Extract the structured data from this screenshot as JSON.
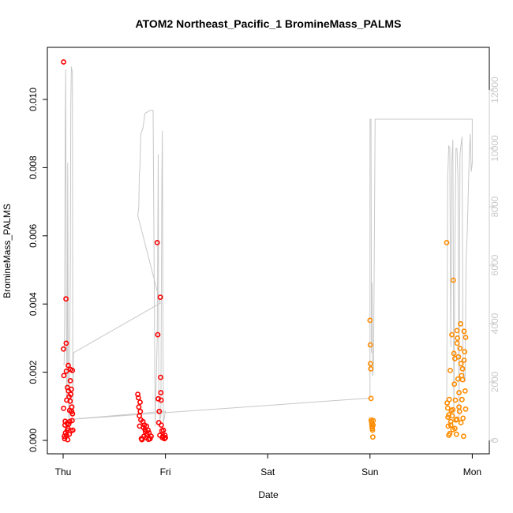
{
  "chart_data": {
    "type": "scatter",
    "title": "ATOM2 Northeast_Pacific_1 BromineMass_PALMS",
    "xlabel": "Date",
    "ylabel": "BromineMass_PALMS",
    "x_ticks": [
      "Thu",
      "Fri",
      "Sat",
      "Sun",
      "Mon"
    ],
    "x_range": [
      0,
      4.07
    ],
    "ylim": [
      0,
      0.0112
    ],
    "y_ticks": [
      0.0,
      0.002,
      0.004,
      0.006,
      0.008,
      0.01
    ],
    "y_tick_labels": [
      "0.000",
      "0.002",
      "0.004",
      "0.006",
      "0.008",
      "0.010"
    ],
    "y2lim": [
      0,
      13100
    ],
    "y2_ticks": [
      0,
      2000,
      4000,
      6000,
      8000,
      10000,
      12000
    ],
    "y2_tick_labels": [
      "0",
      "2000",
      "4000",
      "6000",
      "8000",
      "10000",
      "12000"
    ],
    "grid": false,
    "colors": {
      "series1": "#ff0000",
      "series2": "#ff8c00",
      "altitude": "#c8c8c8",
      "frame": "#000000"
    },
    "series": [
      {
        "color": "#ff0000",
        "points": [
          [
            0.005,
            0.0111
          ],
          [
            0.005,
            0.00094
          ],
          [
            0.007,
            0.0019
          ],
          [
            0.004,
            0.00268
          ],
          [
            0.012,
            0.00012
          ],
          [
            0.015,
            5e-05
          ],
          [
            0.018,
            0.00045
          ],
          [
            0.02,
            0.00056
          ],
          [
            0.022,
            0.00022
          ],
          [
            0.028,
            0.00415
          ],
          [
            0.03,
            0.00285
          ],
          [
            0.032,
            0.00203
          ],
          [
            0.035,
            0.00118
          ],
          [
            0.033,
            0.00015
          ],
          [
            0.038,
            0.0005
          ],
          [
            0.04,
            0.0003
          ],
          [
            0.042,
            0.00155
          ],
          [
            0.045,
            2e-05
          ],
          [
            0.048,
            0.00035
          ],
          [
            0.05,
            0.0022
          ],
          [
            0.052,
            0.00145
          ],
          [
            0.055,
            0.00048
          ],
          [
            0.058,
            0.00128
          ],
          [
            0.06,
            0.00018
          ],
          [
            0.063,
            0.00088
          ],
          [
            0.065,
            0.00055
          ],
          [
            0.068,
            0.00115
          ],
          [
            0.07,
            0.00175
          ],
          [
            0.072,
            0.00208
          ],
          [
            0.075,
            0.00135
          ],
          [
            0.078,
            0.00028
          ],
          [
            0.08,
            0.0015
          ],
          [
            0.083,
            0.00085
          ],
          [
            0.085,
            0.00098
          ],
          [
            0.088,
            0.00058
          ],
          [
            0.09,
            0.00205
          ],
          [
            0.092,
            0.00078
          ],
          [
            0.095,
            0.0003
          ],
          [
            0.73,
            0.00135
          ],
          [
            0.735,
            0.00125
          ],
          [
            0.74,
            0.00098
          ],
          [
            0.745,
            0.00072
          ],
          [
            0.748,
            0.00042
          ],
          [
            0.752,
            0.00112
          ],
          [
            0.755,
            0.00085
          ],
          [
            0.76,
            0.0006
          ],
          [
            0.765,
            5e-05
          ],
          [
            0.77,
            2e-05
          ],
          [
            0.78,
            0.00055
          ],
          [
            0.785,
            0.00038
          ],
          [
            0.79,
            0.00012
          ],
          [
            0.795,
            0.00045
          ],
          [
            0.8,
            0.00032
          ],
          [
            0.805,
            0.00025
          ],
          [
            0.81,
            8e-05
          ],
          [
            0.815,
            0.00042
          ],
          [
            0.82,
            0.00018
          ],
          [
            0.83,
            0.0003
          ],
          [
            0.835,
            3e-05
          ],
          [
            0.84,
            0.00022
          ],
          [
            0.85,
            5e-05
          ],
          [
            0.86,
            0.00012
          ],
          [
            0.92,
            0.0058
          ],
          [
            0.925,
            0.0031
          ],
          [
            0.93,
            0.00122
          ],
          [
            0.935,
            0.00052
          ],
          [
            0.94,
            0.00085
          ],
          [
            0.945,
            0.00015
          ],
          [
            0.95,
            0.0042
          ],
          [
            0.953,
            0.00185
          ],
          [
            0.955,
            0.0014
          ],
          [
            0.958,
            0.00118
          ],
          [
            0.96,
            0.00045
          ],
          [
            0.965,
            0.00028
          ],
          [
            0.97,
            8e-05
          ],
          [
            0.975,
            0.00012
          ],
          [
            0.98,
            0.0003
          ],
          [
            0.99,
            5e-05
          ],
          [
            0.995,
            0.00015
          ],
          [
            1.0,
            8e-05
          ]
        ]
      },
      {
        "color": "#ff8c00",
        "points": [
          [
            3.0,
            0.00352
          ],
          [
            3.003,
            0.0028
          ],
          [
            3.005,
            0.00225
          ],
          [
            3.008,
            0.0021
          ],
          [
            3.01,
            0.00123
          ],
          [
            3.012,
            0.0006
          ],
          [
            3.015,
            0.00055
          ],
          [
            3.018,
            0.00048
          ],
          [
            3.02,
            0.0004
          ],
          [
            3.022,
            0.00035
          ],
          [
            3.025,
            0.0003
          ],
          [
            3.028,
            0.0001
          ],
          [
            3.03,
            0.00045
          ],
          [
            3.032,
            0.00058
          ],
          [
            3.75,
            0.0058
          ],
          [
            3.755,
            0.0011
          ],
          [
            3.76,
            0.00095
          ],
          [
            3.762,
            0.00068
          ],
          [
            3.765,
            0.00042
          ],
          [
            3.77,
            0.00015
          ],
          [
            3.775,
            0.0012
          ],
          [
            3.78,
            0.0002
          ],
          [
            3.785,
            0.00205
          ],
          [
            3.79,
            0.00055
          ],
          [
            3.795,
            0.00088
          ],
          [
            3.8,
            0.0031
          ],
          [
            3.805,
            0.00072
          ],
          [
            3.81,
            0.00032
          ],
          [
            3.815,
            0.0047
          ],
          [
            3.82,
            0.00255
          ],
          [
            3.825,
            0.00165
          ],
          [
            3.83,
            0.0024
          ],
          [
            3.835,
            0.00118
          ],
          [
            3.84,
            0.0006
          ],
          [
            3.845,
            0.00018
          ],
          [
            3.85,
            0.00322
          ],
          [
            3.852,
            0.00285
          ],
          [
            3.855,
            0.003
          ],
          [
            3.86,
            0.0018
          ],
          [
            3.865,
            0.00245
          ],
          [
            3.87,
            0.0014
          ],
          [
            3.875,
            0.00085
          ],
          [
            3.88,
            0.0027
          ],
          [
            3.885,
            0.00342
          ],
          [
            3.89,
            0.00225
          ],
          [
            3.895,
            0.0019
          ],
          [
            3.9,
            0.0012
          ],
          [
            3.905,
            0.0021
          ],
          [
            3.91,
            0.00065
          ],
          [
            3.915,
            0.00012
          ],
          [
            3.92,
            0.0032
          ],
          [
            3.925,
            0.0026
          ],
          [
            3.93,
            0.00145
          ],
          [
            3.935,
            0.00092
          ],
          [
            3.77,
            0.00075
          ],
          [
            3.79,
            0.00045
          ],
          [
            3.81,
            0.0009
          ],
          [
            3.83,
            0.00035
          ],
          [
            3.85,
            0.00062
          ],
          [
            3.87,
            0.00098
          ],
          [
            3.89,
            0.00052
          ],
          [
            3.905,
            0.00178
          ],
          [
            3.92,
            0.00235
          ],
          [
            3.935,
            0.00302
          ]
        ]
      },
      {
        "color": "#c8c8c8",
        "axis": "right",
        "mode": "line",
        "points": [
          [
            0.0,
            2600
          ],
          [
            0.01,
            2600
          ],
          [
            0.015,
            4000
          ],
          [
            0.02,
            10500
          ],
          [
            0.025,
            12700
          ],
          [
            0.03,
            6500
          ],
          [
            0.035,
            1500
          ],
          [
            0.04,
            2000
          ],
          [
            0.045,
            9500
          ],
          [
            0.05,
            2800
          ],
          [
            0.055,
            800
          ],
          [
            0.06,
            700
          ],
          [
            0.07,
            6000
          ],
          [
            0.075,
            11500
          ],
          [
            0.08,
            12800
          ],
          [
            0.09,
            12600
          ],
          [
            0.095,
            800
          ],
          [
            0.1,
            3000
          ],
          [
            0.95,
            4700
          ],
          [
            0.73,
            7700
          ],
          [
            0.74,
            8000
          ],
          [
            0.745,
            9200
          ],
          [
            0.75,
            9300
          ],
          [
            0.76,
            10500
          ],
          [
            0.78,
            10700
          ],
          [
            0.8,
            11200
          ],
          [
            0.85,
            11300
          ],
          [
            0.88,
            11300
          ],
          [
            0.9,
            500
          ],
          [
            0.92,
            3500
          ],
          [
            0.93,
            9800
          ],
          [
            0.935,
            1200
          ],
          [
            0.945,
            700
          ],
          [
            0.955,
            800
          ],
          [
            0.965,
            9000
          ],
          [
            0.97,
            10600
          ],
          [
            0.98,
            600
          ],
          [
            1.0,
            1000
          ],
          [
            0.0,
            700
          ],
          [
            3.0,
            1450
          ],
          [
            3.0,
            11000
          ],
          [
            3.01,
            11000
          ],
          [
            3.015,
            3000
          ],
          [
            3.02,
            5400
          ],
          [
            3.025,
            2200
          ],
          [
            3.035,
            2500
          ],
          [
            3.05,
            11000
          ],
          [
            4.0,
            11000
          ],
          [
            4.0,
            9500
          ],
          [
            3.99,
            9200
          ],
          [
            3.98,
            10500
          ],
          [
            3.97,
            9700
          ],
          [
            3.95,
            7000
          ],
          [
            3.94,
            6200
          ],
          [
            3.93,
            2000
          ],
          [
            3.91,
            2500
          ],
          [
            3.9,
            10400
          ],
          [
            3.88,
            9800
          ],
          [
            3.87,
            800
          ],
          [
            3.86,
            9000
          ],
          [
            3.85,
            10000
          ],
          [
            3.84,
            10000
          ],
          [
            3.83,
            6500
          ],
          [
            3.82,
            800
          ],
          [
            3.81,
            10300
          ],
          [
            3.8,
            9500
          ],
          [
            3.79,
            3200
          ],
          [
            3.78,
            10000
          ],
          [
            3.77,
            10100
          ],
          [
            3.76,
            9000
          ],
          [
            3.75,
            1400
          ],
          [
            3.74,
            1300
          ]
        ]
      }
    ]
  }
}
